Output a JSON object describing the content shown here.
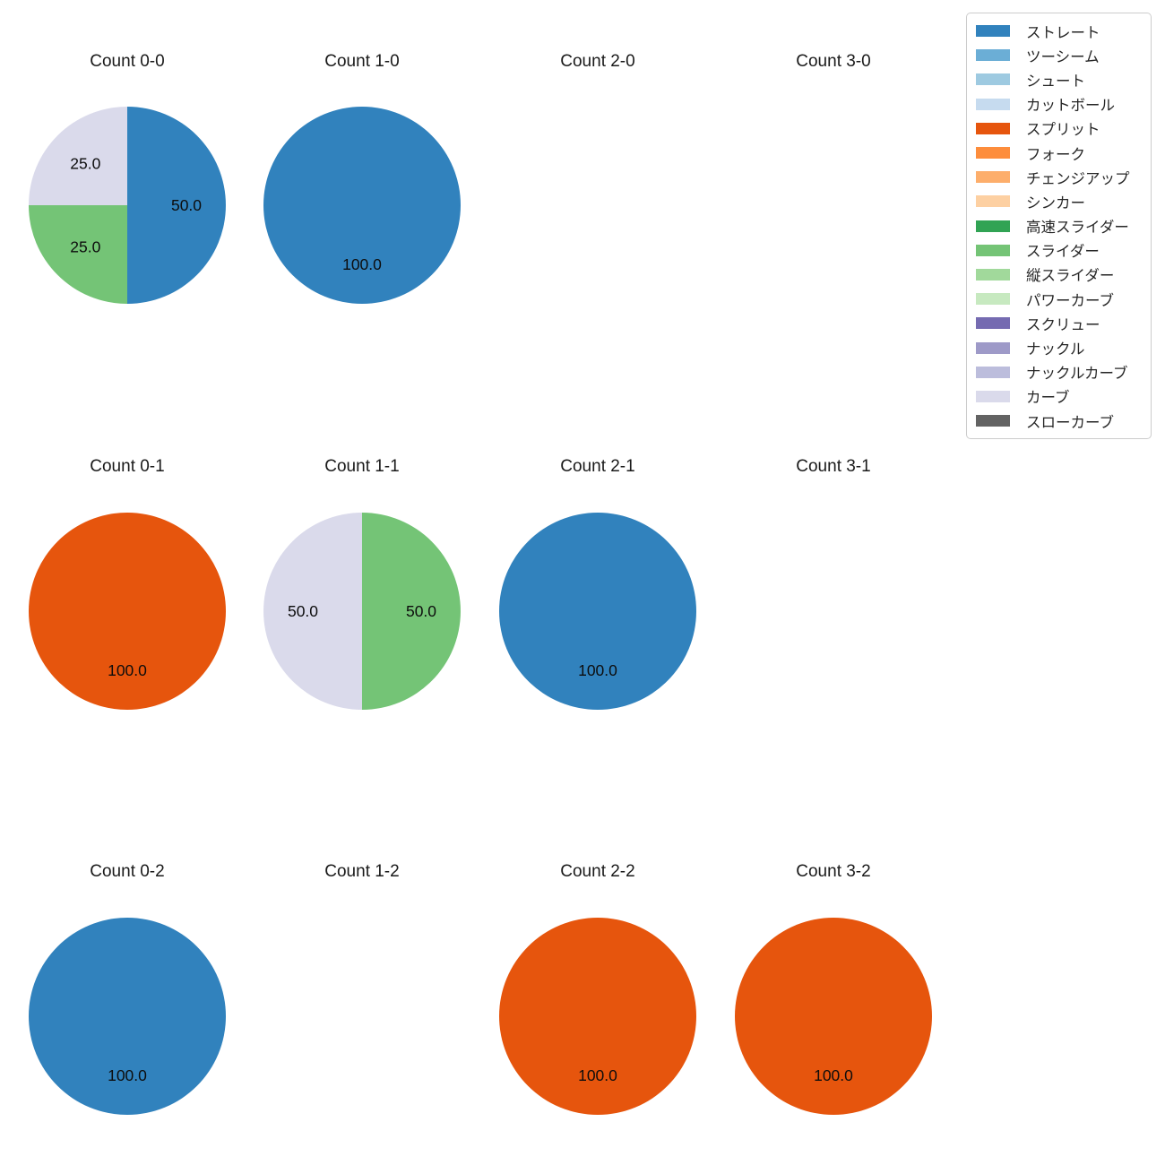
{
  "legend": {
    "items": [
      {
        "label": "ストレート",
        "color": "#3182bd"
      },
      {
        "label": "ツーシーム",
        "color": "#6baed6"
      },
      {
        "label": "シュート",
        "color": "#9ecae1"
      },
      {
        "label": "カットボール",
        "color": "#c6dbef"
      },
      {
        "label": "スプリット",
        "color": "#e6550d"
      },
      {
        "label": "フォーク",
        "color": "#fd8d3c"
      },
      {
        "label": "チェンジアップ",
        "color": "#fdae6b"
      },
      {
        "label": "シンカー",
        "color": "#fdd0a2"
      },
      {
        "label": "高速スライダー",
        "color": "#31a354"
      },
      {
        "label": "スライダー",
        "color": "#74c476"
      },
      {
        "label": "縦スライダー",
        "color": "#a1d99b"
      },
      {
        "label": "パワーカーブ",
        "color": "#c7e9c0"
      },
      {
        "label": "スクリュー",
        "color": "#756bb1"
      },
      {
        "label": "ナックル",
        "color": "#9e9ac8"
      },
      {
        "label": "ナックルカーブ",
        "color": "#bcbddc"
      },
      {
        "label": "カーブ",
        "color": "#dadaeb"
      },
      {
        "label": "スローカーブ",
        "color": "#636363"
      }
    ]
  },
  "chart_data": {
    "type": "pie",
    "grid": {
      "rows": 3,
      "cols": 4
    },
    "start_angle_deg": 90,
    "direction": "clockwise",
    "label_radius_fraction": 0.6,
    "legend_position": "top-right",
    "charts": [
      {
        "title": "Count 0-0",
        "row": 0,
        "col": 0,
        "slices": [
          {
            "label": "ストレート",
            "value": 50.0,
            "pct_text": "50.0"
          },
          {
            "label": "スライダー",
            "value": 25.0,
            "pct_text": "25.0"
          },
          {
            "label": "カーブ",
            "value": 25.0,
            "pct_text": "25.0"
          }
        ]
      },
      {
        "title": "Count 1-0",
        "row": 0,
        "col": 1,
        "slices": [
          {
            "label": "ストレート",
            "value": 100.0,
            "pct_text": "100.0"
          }
        ]
      },
      {
        "title": "Count 2-0",
        "row": 0,
        "col": 2,
        "slices": []
      },
      {
        "title": "Count 3-0",
        "row": 0,
        "col": 3,
        "slices": []
      },
      {
        "title": "Count 0-1",
        "row": 1,
        "col": 0,
        "slices": [
          {
            "label": "スプリット",
            "value": 100.0,
            "pct_text": "100.0"
          }
        ]
      },
      {
        "title": "Count 1-1",
        "row": 1,
        "col": 1,
        "slices": [
          {
            "label": "スライダー",
            "value": 50.0,
            "pct_text": "50.0"
          },
          {
            "label": "カーブ",
            "value": 50.0,
            "pct_text": "50.0"
          }
        ]
      },
      {
        "title": "Count 2-1",
        "row": 1,
        "col": 2,
        "slices": [
          {
            "label": "ストレート",
            "value": 100.0,
            "pct_text": "100.0"
          }
        ]
      },
      {
        "title": "Count 3-1",
        "row": 1,
        "col": 3,
        "slices": []
      },
      {
        "title": "Count 0-2",
        "row": 2,
        "col": 0,
        "slices": [
          {
            "label": "ストレート",
            "value": 100.0,
            "pct_text": "100.0"
          }
        ]
      },
      {
        "title": "Count 1-2",
        "row": 2,
        "col": 1,
        "slices": []
      },
      {
        "title": "Count 2-2",
        "row": 2,
        "col": 2,
        "slices": [
          {
            "label": "スプリット",
            "value": 100.0,
            "pct_text": "100.0"
          }
        ]
      },
      {
        "title": "Count 3-2",
        "row": 2,
        "col": 3,
        "slices": [
          {
            "label": "スプリット",
            "value": 100.0,
            "pct_text": "100.0"
          }
        ]
      }
    ]
  }
}
